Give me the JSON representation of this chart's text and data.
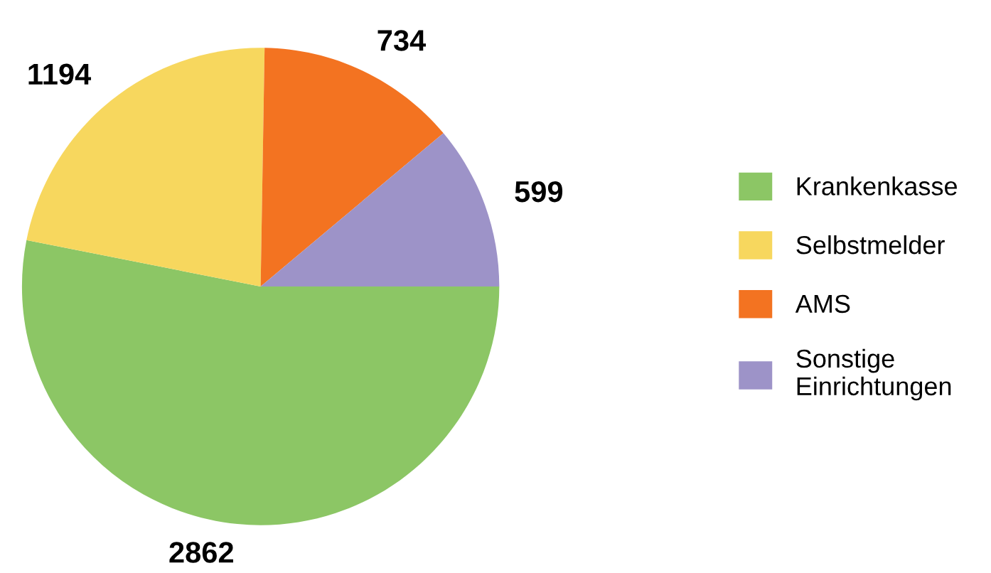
{
  "chart_data": {
    "type": "pie",
    "categories": [
      "Krankenkasse",
      "Selbstmelder",
      "AMS",
      "Sonstige\nEinrichtungen"
    ],
    "values": [
      2862,
      1194,
      734,
      599
    ],
    "colors": [
      "#8cc665",
      "#f7d75e",
      "#f37321",
      "#9d93c8"
    ],
    "data_labels": true,
    "legend": "right"
  }
}
